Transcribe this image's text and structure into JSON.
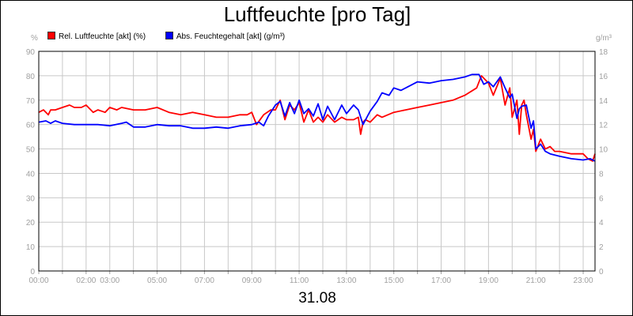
{
  "chart_data": {
    "type": "line",
    "title": "Luftfeuchte [pro Tag]",
    "date_label": "31.08",
    "left_unit": "%",
    "right_unit": "g/m³",
    "x_ticks": [
      "00:00",
      "02:00",
      "03:00",
      "05:00",
      "07:00",
      "09:00",
      "11:00",
      "13:00",
      "15:00",
      "17:00",
      "19:00",
      "21:00",
      "23:00"
    ],
    "x_tick_hours": [
      0,
      2,
      3,
      5,
      7,
      9,
      11,
      13,
      15,
      17,
      19,
      21,
      23
    ],
    "y_left_ticks": [
      0,
      10,
      20,
      30,
      40,
      50,
      60,
      70,
      80,
      90
    ],
    "y_right_ticks": [
      0,
      2,
      4,
      6,
      8,
      10,
      12,
      14,
      16,
      18
    ],
    "ylim_left": [
      0,
      90
    ],
    "ylim_right": [
      0,
      18
    ],
    "xlim_hours": [
      0,
      23.5
    ],
    "grid": true,
    "legend_position": "top-left",
    "series": [
      {
        "name": "Rel. Luftfeuchte [akt] (%)",
        "color": "#ff0000",
        "axis": "left",
        "x": [
          0,
          0.2,
          0.4,
          0.5,
          0.7,
          1.0,
          1.3,
          1.5,
          1.8,
          2.0,
          2.3,
          2.5,
          2.8,
          3.0,
          3.3,
          3.5,
          4.0,
          4.5,
          5.0,
          5.5,
          6.0,
          6.5,
          7.0,
          7.5,
          8.0,
          8.5,
          8.8,
          9.0,
          9.2,
          9.5,
          9.8,
          10.0,
          10.2,
          10.4,
          10.6,
          10.8,
          11.0,
          11.2,
          11.4,
          11.6,
          11.8,
          12.0,
          12.2,
          12.5,
          12.8,
          13.0,
          13.3,
          13.5,
          13.6,
          13.7,
          13.8,
          14.0,
          14.3,
          14.5,
          15.0,
          15.5,
          16.0,
          16.5,
          17.0,
          17.5,
          18.0,
          18.5,
          18.7,
          19.0,
          19.2,
          19.5,
          19.7,
          19.9,
          20.0,
          20.2,
          20.3,
          20.4,
          20.5,
          20.6,
          20.8,
          20.9,
          21.0,
          21.2,
          21.4,
          21.6,
          21.8,
          22.0,
          22.5,
          23.0,
          23.2,
          23.4,
          23.5
        ],
        "values": [
          65,
          66,
          64,
          66,
          66,
          67,
          68,
          67,
          67,
          68,
          65,
          66,
          65,
          67,
          66,
          67,
          66,
          66,
          67,
          65,
          64,
          65,
          64,
          63,
          63,
          64,
          64,
          65,
          60,
          64,
          66,
          66,
          70,
          62,
          68,
          66,
          69,
          61,
          66,
          61,
          63,
          61,
          64,
          61,
          63,
          62,
          62,
          63,
          56,
          61,
          62,
          61,
          64,
          63,
          65,
          66,
          67,
          68,
          69,
          70,
          72,
          75,
          80,
          77,
          72,
          79,
          68,
          75,
          63,
          70,
          56,
          68,
          70,
          64,
          54,
          58,
          49,
          54,
          50,
          51,
          49,
          49,
          48,
          48,
          46,
          45,
          48
        ]
      },
      {
        "name": "Abs. Feuchtegehalt [akt] (g/m³)",
        "color": "#0000ff",
        "axis": "right",
        "x": [
          0,
          0.3,
          0.5,
          0.7,
          1.0,
          1.5,
          2.0,
          2.5,
          3.0,
          3.5,
          3.7,
          4.0,
          4.5,
          5.0,
          5.5,
          6.0,
          6.5,
          7.0,
          7.5,
          8.0,
          8.5,
          9.0,
          9.3,
          9.5,
          9.7,
          10.0,
          10.2,
          10.4,
          10.6,
          10.8,
          11.0,
          11.2,
          11.4,
          11.6,
          11.8,
          12.0,
          12.2,
          12.5,
          12.8,
          13.0,
          13.3,
          13.5,
          13.7,
          14.0,
          14.3,
          14.5,
          14.8,
          15.0,
          15.3,
          15.5,
          16.0,
          16.5,
          17.0,
          17.5,
          18.0,
          18.3,
          18.6,
          18.8,
          19.0,
          19.2,
          19.5,
          19.7,
          19.9,
          20.0,
          20.2,
          20.3,
          20.4,
          20.6,
          20.8,
          20.9,
          21.0,
          21.2,
          21.4,
          21.6,
          21.8,
          22.0,
          22.5,
          23.0,
          23.3,
          23.5
        ],
        "values": [
          12.2,
          12.3,
          12.1,
          12.3,
          12.1,
          12.0,
          12.0,
          12.0,
          11.9,
          12.1,
          12.2,
          11.8,
          11.8,
          12.0,
          11.9,
          11.9,
          11.7,
          11.7,
          11.8,
          11.7,
          11.9,
          12.0,
          12.2,
          11.9,
          12.7,
          13.6,
          13.9,
          12.7,
          13.8,
          12.9,
          14.0,
          12.9,
          13.3,
          12.7,
          13.7,
          12.4,
          13.5,
          12.4,
          13.6,
          12.9,
          13.6,
          13.2,
          12.0,
          13.1,
          13.9,
          14.6,
          14.4,
          15.0,
          14.8,
          15.0,
          15.5,
          15.4,
          15.6,
          15.7,
          15.9,
          16.1,
          16.1,
          15.3,
          15.5,
          15.1,
          15.9,
          15.0,
          14.2,
          14.5,
          12.5,
          13.3,
          13.5,
          13.6,
          11.7,
          12.3,
          10.0,
          10.4,
          9.8,
          9.6,
          9.5,
          9.4,
          9.2,
          9.1,
          9.2,
          9.0
        ]
      }
    ]
  }
}
